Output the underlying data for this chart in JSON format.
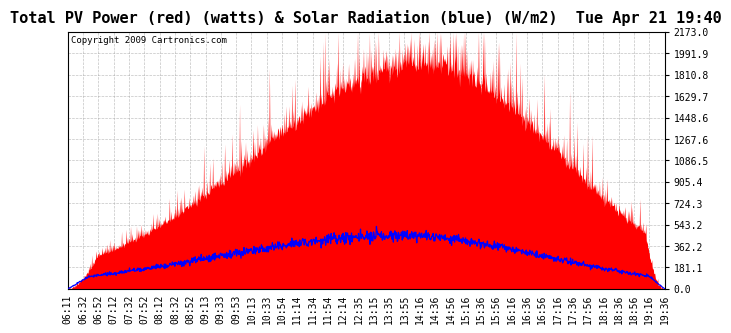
{
  "title": "Total PV Power (red) (watts) & Solar Radiation (blue) (W/m2)  Tue Apr 21 19:40",
  "copyright_text": "Copyright 2009 Cartronics.com",
  "bg_color": "#ffffff",
  "plot_bg_color": "#ffffff",
  "grid_color": "#aaaaaa",
  "red_color": "#ff0000",
  "blue_color": "#0000ff",
  "y_min": 0.0,
  "y_max": 2173.0,
  "y_ticks": [
    0.0,
    181.1,
    362.2,
    543.2,
    724.3,
    905.4,
    1086.5,
    1267.6,
    1448.6,
    1629.7,
    1810.8,
    1991.9,
    2173.0
  ],
  "x_tick_labels": [
    "06:11",
    "06:32",
    "06:52",
    "07:12",
    "07:32",
    "07:52",
    "08:12",
    "08:32",
    "08:52",
    "09:13",
    "09:33",
    "09:53",
    "10:13",
    "10:33",
    "10:54",
    "11:14",
    "11:34",
    "11:54",
    "12:14",
    "12:35",
    "13:15",
    "13:35",
    "13:55",
    "14:16",
    "14:36",
    "14:56",
    "15:16",
    "15:36",
    "15:56",
    "16:16",
    "16:36",
    "16:56",
    "17:16",
    "17:36",
    "17:56",
    "18:16",
    "18:36",
    "18:56",
    "19:16",
    "19:36"
  ],
  "title_fontsize": 11,
  "tick_fontsize": 7,
  "copyright_fontsize": 6.5
}
